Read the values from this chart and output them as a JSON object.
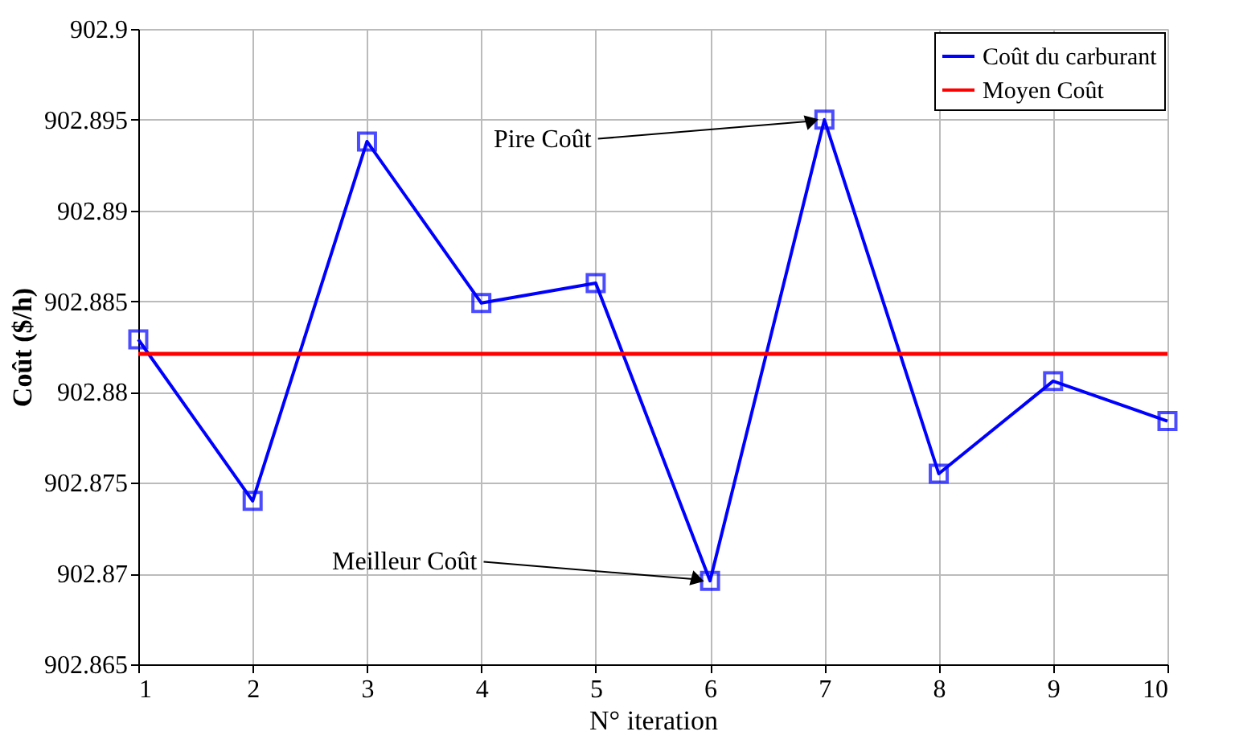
{
  "chart_data": {
    "type": "line",
    "xlabel": "N° iteration",
    "ylabel": "Coût ($/h)",
    "x": [
      1,
      2,
      3,
      4,
      5,
      6,
      7,
      8,
      9,
      10
    ],
    "series": [
      {
        "name": "Coût du carburant",
        "color": "#0000ff",
        "values": [
          902.8829,
          902.874,
          902.8938,
          902.8849,
          902.886,
          902.8696,
          902.895,
          902.8755,
          902.8806,
          902.8784
        ]
      }
    ],
    "ref_lines": [
      {
        "axis": "y",
        "value": 902.8821,
        "label": "Moyen Coût",
        "color": "#ff0000"
      }
    ],
    "annotations": [
      {
        "text": "Pire Coût",
        "x": 7,
        "y": 902.895
      },
      {
        "text": "Meilleur Coût",
        "x": 6,
        "y": 902.8696
      }
    ],
    "xlim": [
      1,
      10
    ],
    "xticks": [
      1,
      2,
      3,
      4,
      5,
      6,
      7,
      8,
      9,
      10
    ],
    "ylim": [
      902.865,
      902.9
    ],
    "yticks": [
      902.865,
      902.87,
      902.875,
      902.88,
      902.885,
      902.89,
      902.895,
      902.9
    ],
    "grid": true,
    "legend": "top right",
    "marker": "square",
    "line_style": "solid"
  }
}
